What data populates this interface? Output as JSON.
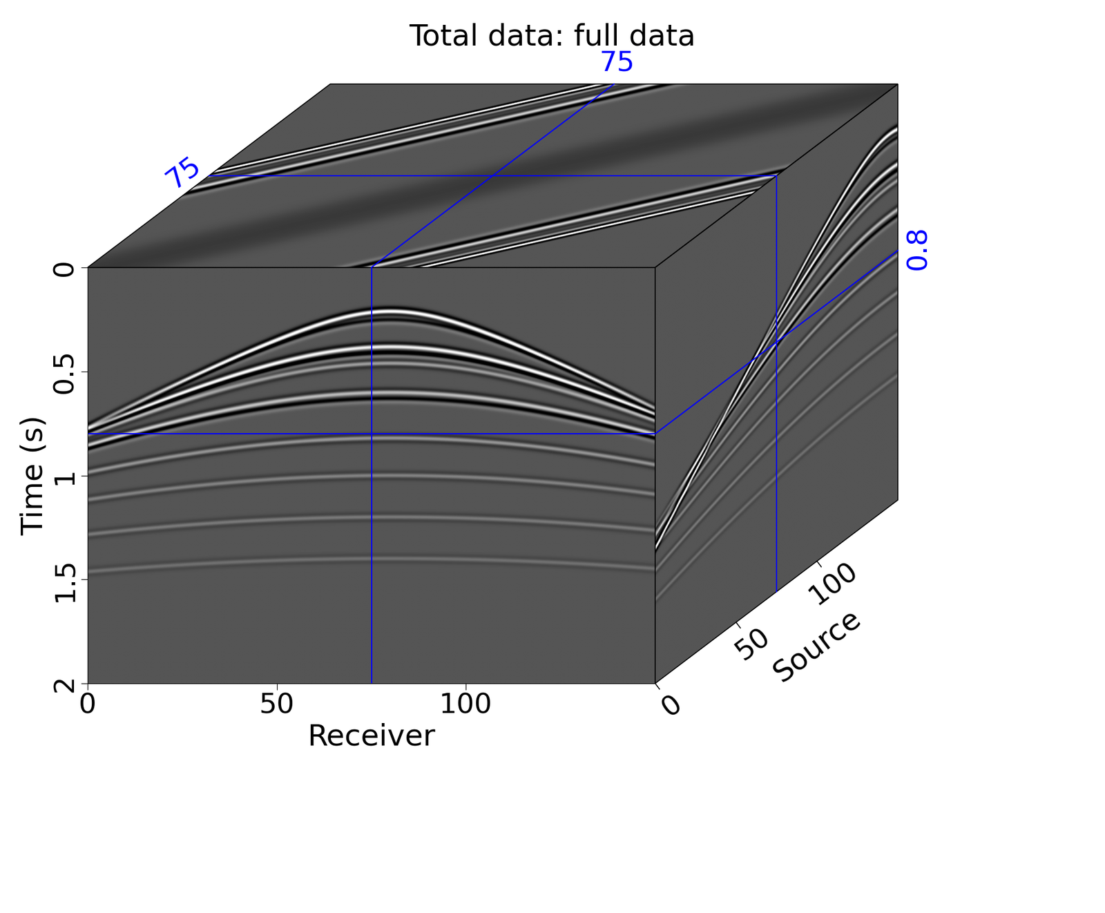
{
  "chart_data": {
    "type": "seismic_cube",
    "title": "Total data: full data",
    "x_label": "Receiver",
    "y_label": "Time (s)",
    "z_label": "Source",
    "xlim": [
      0,
      150
    ],
    "xticks": [
      0,
      50,
      100
    ],
    "ylim": [
      0,
      2
    ],
    "yticks": [
      0,
      0.5,
      1,
      1.5,
      2
    ],
    "zlim": [
      0,
      150
    ],
    "zticks": [
      0,
      50,
      100
    ],
    "slices": {
      "receiver": 75,
      "source": 75,
      "time": 0.8
    },
    "color": "#0000ff",
    "apex_receiver_offset": 5,
    "reflections": [
      {
        "t0": 0.21,
        "moveout": 0.0092,
        "amplitude": 1.0
      },
      {
        "t0": 0.25,
        "moveout": 0.009,
        "amplitude": -0.4
      },
      {
        "t0": 0.38,
        "moveout": 0.0085,
        "amplitude": 0.8
      },
      {
        "t0": 0.41,
        "moveout": 0.0084,
        "amplitude": -0.5
      },
      {
        "t0": 0.46,
        "moveout": 0.0082,
        "amplitude": 0.4
      },
      {
        "t0": 0.6,
        "moveout": 0.0076,
        "amplitude": 0.5
      },
      {
        "t0": 0.63,
        "moveout": 0.0075,
        "amplitude": -0.4
      },
      {
        "t0": 0.82,
        "moveout": 0.0068,
        "amplitude": 0.35
      },
      {
        "t0": 1.0,
        "moveout": 0.0062,
        "amplitude": 0.25
      },
      {
        "t0": 1.2,
        "moveout": 0.0057,
        "amplitude": 0.2
      },
      {
        "t0": 1.4,
        "moveout": 0.0053,
        "amplitude": 0.15
      }
    ]
  }
}
